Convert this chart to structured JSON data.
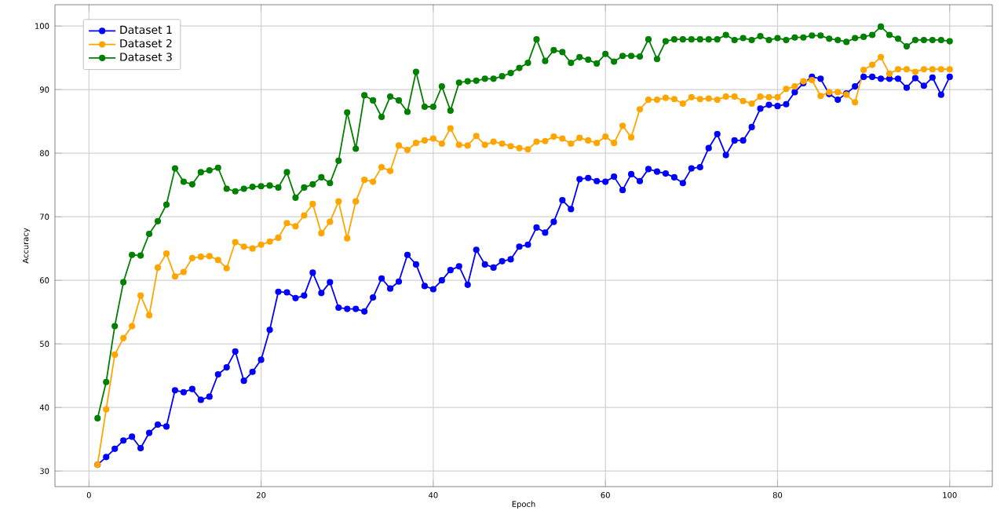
{
  "chart_data": {
    "type": "line",
    "xlabel": "Epoch",
    "ylabel": "Accuracy",
    "x": [
      1,
      2,
      3,
      4,
      5,
      6,
      7,
      8,
      9,
      10,
      11,
      12,
      13,
      14,
      15,
      16,
      17,
      18,
      19,
      20,
      21,
      22,
      23,
      24,
      25,
      26,
      27,
      28,
      29,
      30,
      31,
      32,
      33,
      34,
      35,
      36,
      37,
      38,
      39,
      40,
      41,
      42,
      43,
      44,
      45,
      46,
      47,
      48,
      49,
      50,
      51,
      52,
      53,
      54,
      55,
      56,
      57,
      58,
      59,
      60,
      61,
      62,
      63,
      64,
      65,
      66,
      67,
      68,
      69,
      70,
      71,
      72,
      73,
      74,
      75,
      76,
      77,
      78,
      79,
      80,
      81,
      82,
      83,
      84,
      85,
      86,
      87,
      88,
      89,
      90,
      91,
      92,
      93,
      94,
      95,
      96,
      97,
      98,
      99,
      100
    ],
    "series": [
      {
        "name": "Dataset 1",
        "color": "#0000ff",
        "values": [
          31,
          32.2,
          33.5,
          34.8,
          35.4,
          33.6,
          36,
          37.3,
          37,
          42.7,
          42.4,
          42.9,
          41.2,
          41.7,
          45.2,
          46.3,
          48.8,
          44.2,
          45.6,
          47.5,
          52.2,
          58.2,
          58.1,
          57.2,
          57.6,
          61.2,
          58,
          59.7,
          55.7,
          55.5,
          55.5,
          55.1,
          57.3,
          60.3,
          58.7,
          59.8,
          64,
          62.5,
          59.1,
          58.6,
          60,
          61.6,
          62.2,
          59.3,
          64.8,
          62.5,
          62,
          63,
          63.3,
          65.3,
          65.6,
          68.3,
          67.5,
          69.2,
          72.6,
          71.2,
          75.9,
          76.1,
          75.6,
          75.5,
          76.3,
          74.2,
          76.7,
          75.6,
          77.5,
          77.1,
          76.8,
          76.2,
          75.3,
          77.6,
          77.8,
          80.8,
          83,
          79.7,
          82,
          82,
          84.1,
          87,
          87.6,
          87.4,
          87.7,
          89.6,
          91,
          92,
          91.7,
          89.3,
          88.4,
          89.4,
          90.5,
          92,
          92,
          91.7,
          91.7,
          91.7,
          90.3,
          91.8,
          90.6,
          91.9,
          89.2,
          92
        ]
      },
      {
        "name": "Dataset 2",
        "color": "#ffa500",
        "values": [
          31,
          39.7,
          48.3,
          50.9,
          52.8,
          57.6,
          54.5,
          62,
          64.2,
          60.6,
          61.3,
          63.5,
          63.7,
          63.8,
          63.2,
          61.9,
          66,
          65.3,
          65,
          65.6,
          66.1,
          66.7,
          69,
          68.5,
          70.2,
          72,
          67.4,
          69.2,
          72.4,
          66.6,
          72.4,
          75.8,
          75.5,
          77.8,
          77.2,
          81.2,
          80.5,
          81.6,
          82,
          82.3,
          81.5,
          83.9,
          81.3,
          81.2,
          82.7,
          81.3,
          81.8,
          81.5,
          81.1,
          80.8,
          80.6,
          81.8,
          81.9,
          82.6,
          82.3,
          81.5,
          82.4,
          82,
          81.6,
          82.6,
          81.6,
          84.3,
          82.5,
          86.9,
          88.4,
          88.4,
          88.7,
          88.5,
          87.8,
          88.8,
          88.5,
          88.6,
          88.4,
          88.9,
          88.9,
          88.2,
          87.8,
          88.9,
          88.8,
          88.8,
          90.1,
          90.5,
          91.3,
          91.5,
          89,
          89.6,
          89.6,
          89.2,
          88,
          93.1,
          93.9,
          95.1,
          92.5,
          93.2,
          93.2,
          92.8,
          93.2,
          93.2,
          93.2,
          93.2
        ]
      },
      {
        "name": "Dataset 3",
        "color": "#008000",
        "values": [
          38.3,
          44,
          52.8,
          59.7,
          64,
          63.9,
          67.3,
          69.3,
          71.9,
          77.6,
          75.5,
          75.1,
          77,
          77.3,
          77.7,
          74.4,
          74,
          74.4,
          74.7,
          74.8,
          74.9,
          74.6,
          77,
          73,
          74.6,
          75.1,
          76.2,
          75.3,
          78.8,
          86.4,
          80.7,
          89.1,
          88.3,
          85.7,
          88.9,
          88.3,
          86.5,
          92.8,
          87.3,
          87.3,
          90.5,
          86.7,
          91.1,
          91.3,
          91.4,
          91.7,
          91.7,
          92.1,
          92.6,
          93.4,
          94.2,
          97.9,
          94.5,
          96.2,
          95.9,
          94.2,
          95.1,
          94.7,
          94.1,
          95.6,
          94.4,
          95.3,
          95.3,
          95.2,
          97.9,
          94.8,
          97.6,
          97.9,
          97.9,
          97.9,
          97.9,
          97.9,
          97.9,
          98.6,
          97.8,
          98.1,
          97.8,
          98.4,
          97.8,
          98.1,
          97.8,
          98.2,
          98.2,
          98.5,
          98.5,
          98,
          97.8,
          97.5,
          98.1,
          98.3,
          98.6,
          99.9,
          98.6,
          98,
          96.8,
          97.8,
          97.8,
          97.8,
          97.8,
          97.6
        ]
      }
    ],
    "xlim": [
      -3.95,
      104.95
    ],
    "ylim": [
      27.55,
      103.35
    ],
    "xticks": [
      0,
      20,
      40,
      60,
      80,
      100
    ],
    "yticks": [
      30,
      40,
      50,
      60,
      70,
      80,
      90,
      100
    ],
    "grid": true,
    "legend": "top left",
    "marker": "circle",
    "line_style": "solid"
  }
}
